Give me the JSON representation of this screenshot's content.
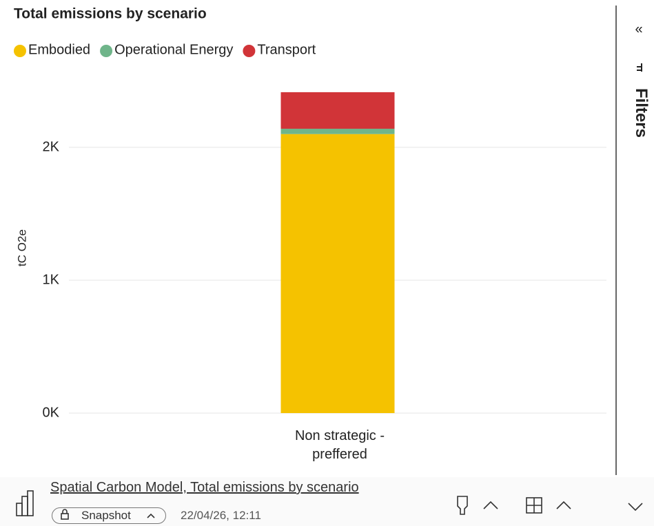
{
  "chart_data": {
    "type": "stacked_bar",
    "title": "Total emissions by scenario",
    "y_label": "tC O2e",
    "categories": [
      "Non strategic - preffered"
    ],
    "series": [
      {
        "name": "Embodied",
        "color": "#f5c200",
        "values": [
          2100
        ]
      },
      {
        "name": "Operational Energy",
        "color": "#6fb58a",
        "values": [
          40
        ]
      },
      {
        "name": "Transport",
        "color": "#d13438",
        "values": [
          275
        ]
      }
    ],
    "ylim": [
      0,
      2500
    ],
    "yticks": [
      {
        "value": 0,
        "label": "0K"
      },
      {
        "value": 1000,
        "label": "1K"
      },
      {
        "value": 2000,
        "label": "2K"
      }
    ],
    "grid": true,
    "legend": "top-left"
  },
  "filters_pane": {
    "label": "Filters"
  },
  "footer": {
    "title": "Spatial Carbon Model, Total emissions by scenario",
    "badge": "Snapshot",
    "timestamp": "22/04/26, 12:11"
  }
}
